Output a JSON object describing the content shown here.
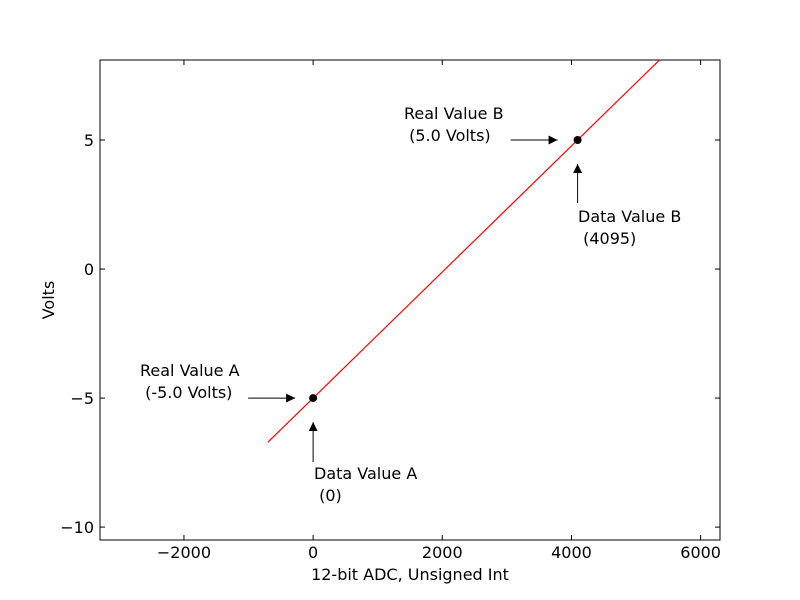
{
  "chart_data": {
    "type": "line",
    "title": "",
    "xlabel": "12-bit ADC, Unsigned Int",
    "ylabel": "Volts",
    "xlim": [
      -3300,
      6300
    ],
    "ylim": [
      -10.5,
      8.1
    ],
    "xticks": [
      -2000,
      0,
      2000,
      4000,
      6000
    ],
    "xtick_labels": [
      "−2000",
      "0",
      "2000",
      "4000",
      "6000"
    ],
    "yticks": [
      -10,
      -5,
      0,
      5
    ],
    "ytick_labels": [
      "−10",
      "−5",
      "0",
      "5"
    ],
    "grid": false,
    "line_color": "#ff0000",
    "series": [
      {
        "x": [
          -700,
          5400
        ],
        "y": [
          -6.71,
          8.19
        ]
      }
    ],
    "points": [
      {
        "x": 0,
        "y": -5.0
      },
      {
        "x": 4095,
        "y": 5.0
      }
    ],
    "annotations": [
      {
        "line1": "Real Value B",
        "line2": " (5.0 Volts)"
      },
      {
        "line1": "Data Value B",
        "line2": " (4095)"
      },
      {
        "line1": "Real Value A",
        "line2": " (-5.0 Volts)"
      },
      {
        "line1": "Data Value A",
        "line2": " (0)"
      }
    ]
  }
}
